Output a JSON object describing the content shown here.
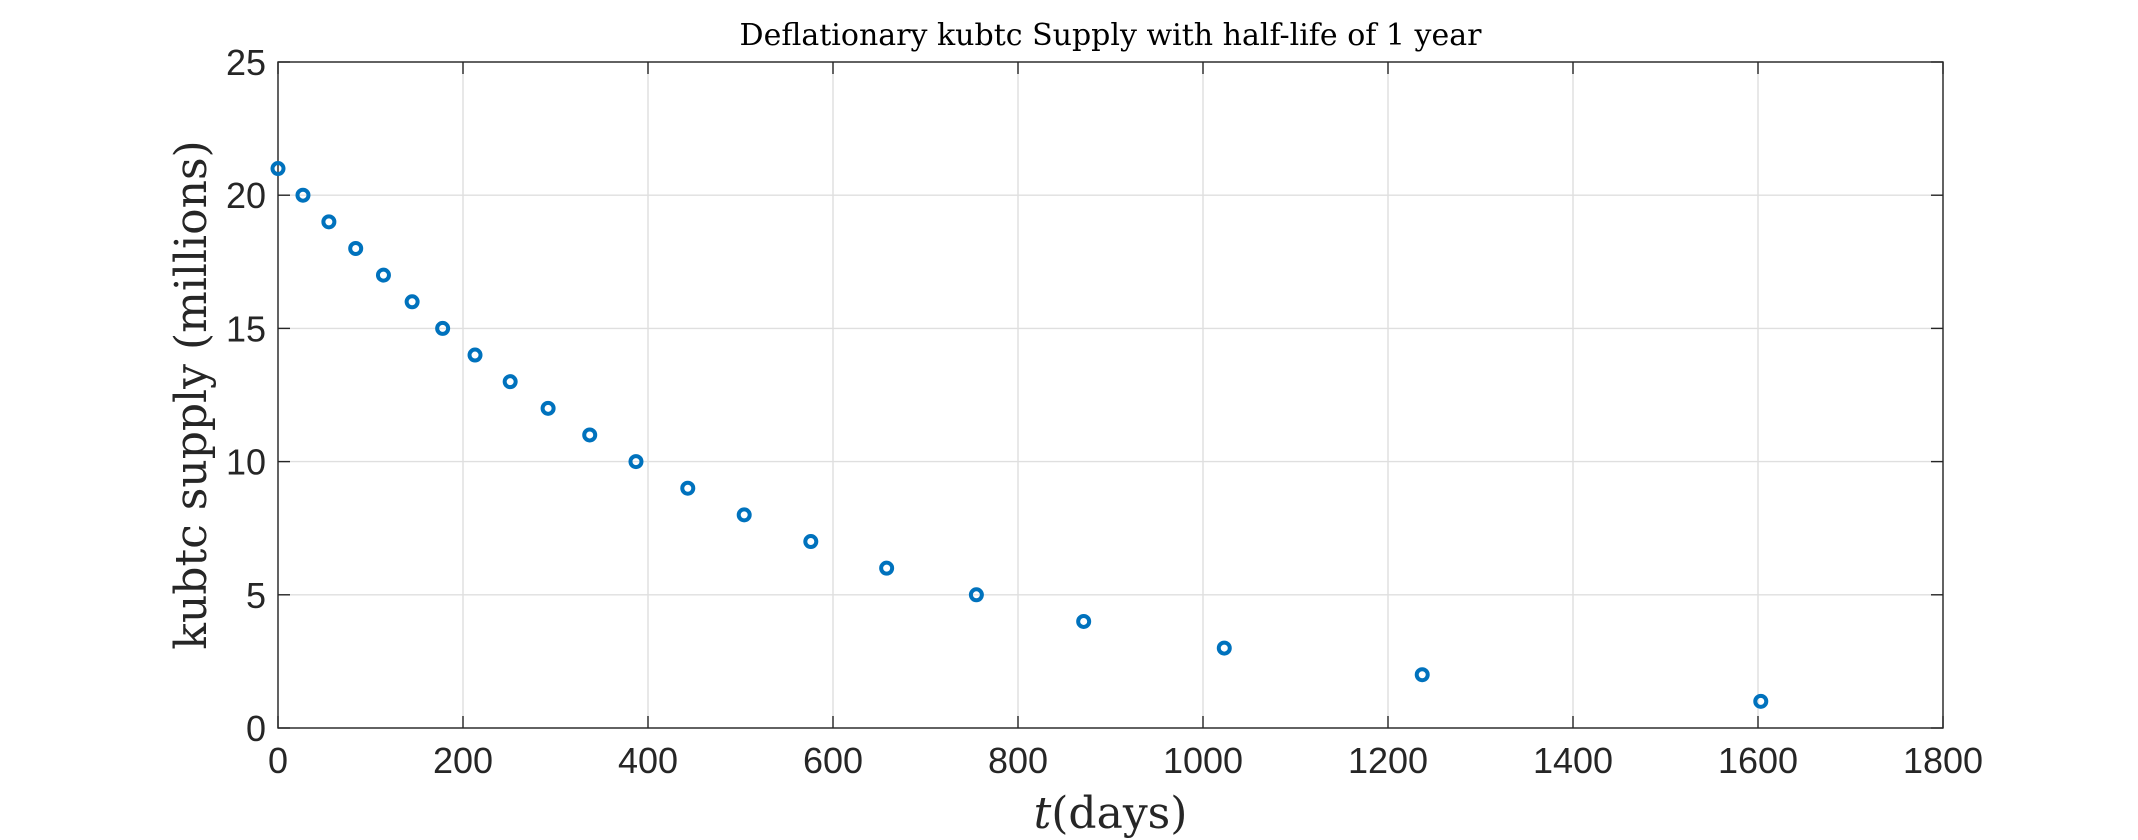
{
  "chart_data": {
    "type": "scatter",
    "title": "Deflationary kubtc Supply with half-life of 1 year",
    "xlabel_var": "t",
    "xlabel_unit": "(days)",
    "ylabel": "kubtc supply (millions)",
    "xlim": [
      0,
      1800
    ],
    "ylim": [
      0,
      25
    ],
    "xticks": [
      0,
      200,
      400,
      600,
      800,
      1000,
      1200,
      1400,
      1600,
      1800
    ],
    "yticks": [
      0,
      5,
      10,
      15,
      20,
      25
    ],
    "grid": true,
    "marker": "circle",
    "color": "#0072bd",
    "x": [
      0,
      27,
      55,
      84,
      114,
      145,
      178,
      213,
      251,
      292,
      337,
      387,
      443,
      504,
      576,
      658,
      755,
      871,
      1023,
      1237,
      1603
    ],
    "y": [
      21,
      20,
      19,
      18,
      17,
      16,
      15,
      14,
      13,
      12,
      11,
      10,
      9,
      8,
      7,
      6,
      5,
      4,
      3,
      2,
      1
    ]
  }
}
